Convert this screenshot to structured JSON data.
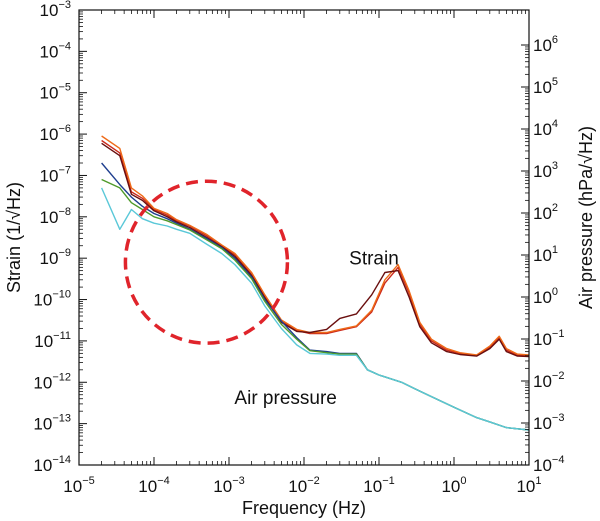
{
  "chart_data": {
    "type": "line",
    "title": "",
    "xlabel": "Frequency  (Hz)",
    "ylabel_left": "Strain  (1/√Hz)",
    "ylabel_right": "Air pressure  (hPa/√Hz)",
    "x_scale": "log",
    "y_scale": "log",
    "y2_scale": "log",
    "xlim": [
      1e-05,
      10
    ],
    "ylim": [
      1e-14,
      0.001
    ],
    "y2lim": [
      0.0001,
      1000000
    ],
    "x_ticks": [
      {
        "value": 1e-05,
        "base": "10",
        "exp": "−5"
      },
      {
        "value": 0.0001,
        "base": "10",
        "exp": "−4"
      },
      {
        "value": 0.001,
        "base": "10",
        "exp": "−3"
      },
      {
        "value": 0.01,
        "base": "10",
        "exp": "−2"
      },
      {
        "value": 0.1,
        "base": "10",
        "exp": "−1"
      },
      {
        "value": 1,
        "base": "10",
        "exp": "0"
      },
      {
        "value": 10,
        "base": "10",
        "exp": "1"
      }
    ],
    "y_ticks": [
      {
        "value": 1e-14,
        "base": "10",
        "exp": "−14"
      },
      {
        "value": 1e-13,
        "base": "10",
        "exp": "−13"
      },
      {
        "value": 1e-12,
        "base": "10",
        "exp": "−12"
      },
      {
        "value": 1e-11,
        "base": "10",
        "exp": "−11"
      },
      {
        "value": 1e-10,
        "base": "10",
        "exp": "−10"
      },
      {
        "value": 1e-09,
        "base": "10",
        "exp": "−9"
      },
      {
        "value": 1e-08,
        "base": "10",
        "exp": "−8"
      },
      {
        "value": 1e-07,
        "base": "10",
        "exp": "−7"
      },
      {
        "value": 1e-06,
        "base": "10",
        "exp": "−6"
      },
      {
        "value": 1e-05,
        "base": "10",
        "exp": "−5"
      },
      {
        "value": 0.0001,
        "base": "10",
        "exp": "−4"
      },
      {
        "value": 0.001,
        "base": "10",
        "exp": "−3"
      }
    ],
    "y2_ticks": [
      {
        "value": 0.0001,
        "base": "10",
        "exp": "−4"
      },
      {
        "value": 0.001,
        "base": "10",
        "exp": "−3"
      },
      {
        "value": 0.01,
        "base": "10",
        "exp": "−2"
      },
      {
        "value": 0.1,
        "base": "10",
        "exp": "−1"
      },
      {
        "value": 1,
        "base": "10",
        "exp": "0"
      },
      {
        "value": 10,
        "base": "10",
        "exp": "1"
      },
      {
        "value": 100,
        "base": "10",
        "exp": "2"
      },
      {
        "value": 1000,
        "base": "10",
        "exp": "3"
      },
      {
        "value": 10000,
        "base": "10",
        "exp": "4"
      },
      {
        "value": 100000,
        "base": "10",
        "exp": "5"
      },
      {
        "value": 1000000,
        "base": "10",
        "exp": "6"
      }
    ],
    "grid": false,
    "legend": "none",
    "annotations": [
      {
        "text": "Strain",
        "x": 0.04,
        "y": 7e-10
      },
      {
        "text": "Air pressure",
        "x": 0.0005,
        "y": 3e-13
      }
    ],
    "highlight_circle": {
      "center_x": 0.0005,
      "center_y": 8e-10,
      "color": "#e0242b",
      "style": "dashed"
    },
    "series": [
      {
        "color": "#cc2a1c",
        "axis": "left",
        "x": [
          2e-05,
          3.5e-05,
          5e-05,
          7e-05,
          0.0001,
          0.00015,
          0.0002,
          0.0003,
          0.0005,
          0.0008,
          0.0012,
          0.002,
          0.003,
          0.005,
          0.008,
          0.012,
          0.02,
          0.03,
          0.05,
          0.08,
          0.12,
          0.18,
          0.25,
          0.35,
          0.5,
          0.8,
          1.2,
          2,
          3,
          4,
          5,
          7,
          10
        ],
        "y": [
          7e-07,
          3.5e-07,
          4e-08,
          2.8e-08,
          1.5e-08,
          1.1e-08,
          8e-09,
          6e-09,
          3.5e-09,
          2e-09,
          1.2e-09,
          4e-10,
          1.2e-10,
          3e-11,
          1.8e-11,
          1.5e-11,
          1.5e-11,
          1.8e-11,
          2.2e-11,
          5e-11,
          2.5e-10,
          6e-10,
          1.5e-10,
          2.5e-11,
          1e-11,
          6e-12,
          5e-12,
          4.5e-12,
          7e-12,
          1.2e-11,
          6e-12,
          4.5e-12,
          4.5e-12
        ]
      },
      {
        "color": "#ee6a18",
        "axis": "left",
        "x": [
          2e-05,
          3.5e-05,
          5e-05,
          7e-05,
          0.0001,
          0.00015,
          0.0002,
          0.0003,
          0.0005,
          0.0008,
          0.0012,
          0.002,
          0.003,
          0.005,
          0.008,
          0.012,
          0.02,
          0.03,
          0.05,
          0.08,
          0.12,
          0.18,
          0.25,
          0.35,
          0.5,
          0.8,
          1.2,
          2,
          3,
          4,
          5,
          7,
          10
        ],
        "y": [
          9e-07,
          4.5e-07,
          5e-08,
          3.2e-08,
          1.6e-08,
          1.2e-08,
          8.5e-09,
          6.2e-09,
          3.8e-09,
          2.1e-09,
          1.3e-09,
          4.5e-10,
          1.3e-10,
          3.2e-11,
          1.9e-11,
          1.6e-11,
          1.6e-11,
          1.9e-11,
          2.3e-11,
          5.5e-11,
          3e-10,
          7e-10,
          1.7e-10,
          2.8e-11,
          1.1e-11,
          6.5e-12,
          5.2e-12,
          4.6e-12,
          7.5e-12,
          1.3e-11,
          6.5e-12,
          4.8e-12,
          4.6e-12
        ]
      },
      {
        "color": "#6a0f0f",
        "axis": "left",
        "x": [
          2e-05,
          3.5e-05,
          5e-05,
          7e-05,
          0.0001,
          0.00015,
          0.0002,
          0.0003,
          0.0005,
          0.0008,
          0.0012,
          0.002,
          0.003,
          0.005,
          0.008,
          0.012,
          0.02,
          0.03,
          0.05,
          0.08,
          0.12,
          0.18,
          0.25,
          0.35,
          0.5,
          0.8,
          1.2,
          2,
          3,
          4,
          5,
          7,
          10
        ],
        "y": [
          6e-07,
          3e-07,
          3.5e-08,
          2.5e-08,
          1.4e-08,
          1e-08,
          7.5e-09,
          5.5e-09,
          3.2e-09,
          1.9e-09,
          1.1e-09,
          3.8e-10,
          1.1e-10,
          2.8e-11,
          1.7e-11,
          1.6e-11,
          1.9e-11,
          3.5e-11,
          4.5e-11,
          1.3e-10,
          4.5e-10,
          5e-10,
          1.2e-10,
          2.2e-11,
          9e-12,
          5.5e-12,
          4.7e-12,
          4.3e-12,
          6.5e-12,
          1.1e-11,
          5.5e-12,
          4.3e-12,
          4.2e-12
        ]
      },
      {
        "color": "#1f3f8f",
        "axis": "left",
        "x": [
          2e-05,
          3.5e-05,
          5e-05,
          7e-05,
          0.0001,
          0.00015,
          0.0002,
          0.0003,
          0.0005,
          0.0008,
          0.0012,
          0.002,
          0.003,
          0.005,
          0.008,
          0.012,
          0.02,
          0.03,
          0.05,
          0.07,
          0.1,
          0.2,
          0.3,
          0.5,
          1,
          2,
          3,
          5,
          10
        ],
        "y": [
          2e-07,
          6e-08,
          3e-08,
          1.8e-08,
          1.2e-08,
          9e-09,
          7e-09,
          5e-09,
          3e-09,
          1.8e-09,
          1e-09,
          3.5e-10,
          1e-10,
          3e-11,
          1.2e-11,
          6e-12,
          5.5e-12,
          5e-12,
          5e-12,
          2e-12,
          1.5e-12,
          1e-12,
          7e-13,
          4.5e-13,
          2.5e-13,
          1.4e-13,
          1.1e-13,
          8e-14,
          7e-14
        ]
      },
      {
        "color": "#4f9a2a",
        "axis": "left",
        "x": [
          2e-05,
          3.5e-05,
          5e-05,
          7e-05,
          0.0001,
          0.00015,
          0.0002,
          0.0003,
          0.0005,
          0.0008,
          0.0012,
          0.002,
          0.003,
          0.005,
          0.008,
          0.012,
          0.02,
          0.03,
          0.05,
          0.07,
          0.1,
          0.2,
          0.3,
          0.5,
          1,
          2,
          3,
          5,
          10
        ],
        "y": [
          8e-08,
          5e-08,
          2.2e-08,
          1.5e-08,
          1e-08,
          8e-09,
          6.5e-09,
          4.8e-09,
          2.8e-09,
          1.7e-09,
          9e-10,
          3.2e-10,
          9e-11,
          2.5e-11,
          1.1e-11,
          5.8e-12,
          5.2e-12,
          4.8e-12,
          4.8e-12,
          2e-12,
          1.5e-12,
          1e-12,
          7e-13,
          4.5e-13,
          2.5e-13,
          1.4e-13,
          1.1e-13,
          8e-14,
          7e-14
        ]
      },
      {
        "color": "#5ac8d8",
        "axis": "left",
        "x": [
          2e-05,
          3.5e-05,
          5e-05,
          7e-05,
          0.0001,
          0.00015,
          0.0002,
          0.0003,
          0.0005,
          0.0008,
          0.0012,
          0.002,
          0.003,
          0.005,
          0.008,
          0.012,
          0.02,
          0.03,
          0.05,
          0.07,
          0.1,
          0.2,
          0.3,
          0.5,
          1,
          2,
          3,
          5,
          10
        ],
        "y": [
          5e-08,
          5e-09,
          1.5e-08,
          9e-09,
          7e-09,
          6e-09,
          5e-09,
          4e-09,
          2.2e-09,
          1.3e-09,
          7e-10,
          2.5e-10,
          7e-11,
          2e-11,
          8e-12,
          5e-12,
          4.8e-12,
          4.5e-12,
          4.5e-12,
          2e-12,
          1.5e-12,
          1e-12,
          7e-13,
          4.5e-13,
          2.5e-13,
          1.4e-13,
          1.1e-13,
          8e-14,
          7e-14
        ]
      }
    ]
  }
}
